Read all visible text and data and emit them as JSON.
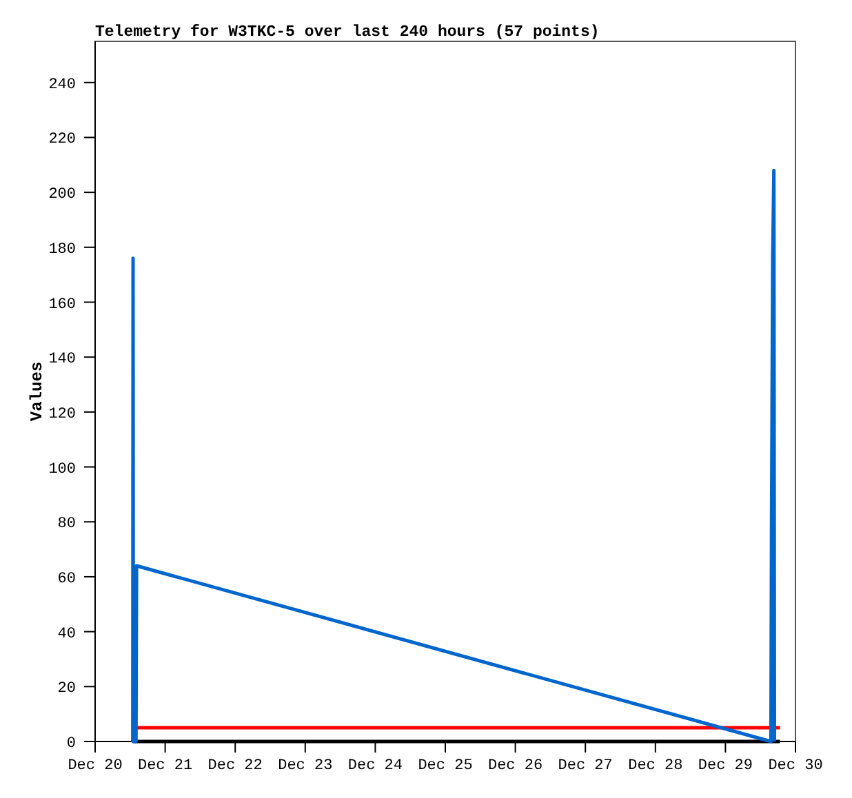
{
  "chart_data": {
    "type": "line",
    "title": "Telemetry for W3TKC-5 over last 240 hours (57 points)",
    "ylabel": "Values",
    "xlim": [
      "--12-20",
      "--12-30"
    ],
    "xticks": [
      {
        "value": "--12-20",
        "label": "Dec 20"
      },
      {
        "value": "--12-21",
        "label": "Dec 21"
      },
      {
        "value": "--12-22",
        "label": "Dec 22"
      },
      {
        "value": "--12-23",
        "label": "Dec 23"
      },
      {
        "value": "--12-24",
        "label": "Dec 24"
      },
      {
        "value": "--12-25",
        "label": "Dec 25"
      },
      {
        "value": "--12-26",
        "label": "Dec 26"
      },
      {
        "value": "--12-27",
        "label": "Dec 27"
      },
      {
        "value": "--12-28",
        "label": "Dec 28"
      },
      {
        "value": "--12-29",
        "label": "Dec 29"
      },
      {
        "value": "--12-30",
        "label": "Dec 30"
      }
    ],
    "ylim": [
      0,
      255
    ],
    "yticks": [
      0,
      20,
      40,
      60,
      80,
      100,
      120,
      140,
      160,
      180,
      200,
      220,
      240
    ],
    "series": [
      {
        "color": "#000000",
        "x": [
          "--12-20T13:00",
          "--12-29T18:40"
        ],
        "values": [
          0,
          0
        ]
      },
      {
        "color": "#ff0000",
        "x": [
          "--12-20T13:00",
          "--12-29T18:40"
        ],
        "values": [
          5,
          5
        ]
      },
      {
        "color": "#0066cc",
        "x": [
          "--12-20T12:54",
          "--12-20T13:00",
          "--12-20T13:06",
          "--12-20T14:00",
          "--12-20T14:12",
          "--12-29T15:36",
          "--12-29T15:48",
          "--12-29T16:12",
          "--12-29T16:36",
          "--12-29T16:48"
        ],
        "values": [
          0,
          176,
          0,
          0,
          64,
          0,
          80,
          176,
          208,
          0
        ]
      }
    ]
  }
}
